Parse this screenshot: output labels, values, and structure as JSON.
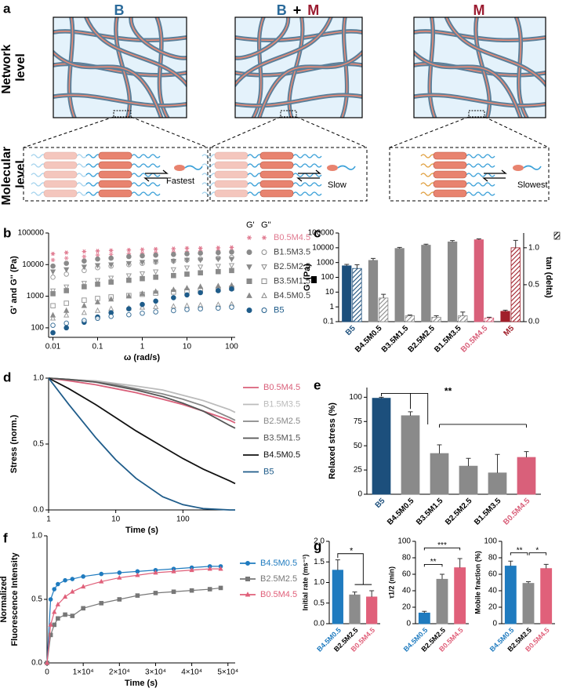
{
  "diagram": {
    "panel": "a",
    "column_titles": [
      [
        "B"
      ],
      [
        "B",
        "+",
        "M"
      ],
      [
        "M"
      ]
    ],
    "row_labels": [
      [
        "Network",
        "level"
      ],
      [
        "Molecular",
        "level"
      ]
    ],
    "speed_labels": [
      "Fastest",
      "Slow",
      "Slowest"
    ]
  },
  "chart_data": [
    {
      "panel": "b",
      "type": "scatter",
      "xlabel": "ω (rad/s)",
      "ylabel": "G' and G'' (Pa)",
      "xlog": true,
      "ylog": true,
      "xlim": [
        0.008,
        120
      ],
      "xticks": [
        0.01,
        0.1,
        1,
        10,
        100
      ],
      "ylim": [
        50,
        100000
      ],
      "yticks": [
        100,
        1000,
        10000,
        100000
      ],
      "legend_headers": [
        "G'",
        "G''"
      ],
      "x": [
        0.01,
        0.02,
        0.05,
        0.1,
        0.2,
        0.5,
        1,
        2,
        5,
        10,
        20,
        50,
        100
      ],
      "series": [
        {
          "name": "B0.5M4.5",
          "color": "#e07a90",
          "marker": "star",
          "storage": [
            22000,
            24000,
            26000,
            27000,
            28000,
            29000,
            30000,
            31000,
            32000,
            33000,
            33000,
            34000,
            35000
          ],
          "loss": [
            14000,
            16000,
            18000,
            20000,
            21000,
            22000,
            23000,
            24000,
            25000,
            26000,
            27000,
            28000,
            28000
          ]
        },
        {
          "name": "B1.5M3.5",
          "color": "#8a8a8a",
          "marker": "circle",
          "storage": [
            9000,
            11000,
            13000,
            15000,
            16000,
            18000,
            19000,
            20000,
            21000,
            22000,
            23000,
            24000,
            25000
          ],
          "loss": [
            4000,
            5000,
            6500,
            8000,
            9000,
            10000,
            11000,
            12000,
            13000,
            14000,
            15000,
            16000,
            17000
          ]
        },
        {
          "name": "B2.5M2.5",
          "color": "#8a8a8a",
          "marker": "triangle-down",
          "storage": [
            6000,
            7000,
            8500,
            9500,
            10000,
            11000,
            12000,
            12500,
            13000,
            14000,
            14000,
            15000,
            15000
          ],
          "loss": [
            1500,
            2000,
            2600,
            3200,
            3800,
            4500,
            5200,
            6000,
            7000,
            8000,
            8500,
            9000,
            9500
          ]
        },
        {
          "name": "B3.5M1.5",
          "color": "#8a8a8a",
          "marker": "square",
          "storage": [
            1200,
            1500,
            2000,
            2400,
            2800,
            3200,
            3600,
            4000,
            4500,
            5000,
            5500,
            6000,
            6500
          ],
          "loss": [
            500,
            600,
            750,
            850,
            950,
            1050,
            1150,
            1250,
            1350,
            1450,
            1550,
            1650,
            1800
          ]
        },
        {
          "name": "B4.5M0.5",
          "color": "#8a8a8a",
          "marker": "triangle-up",
          "storage": [
            250,
            350,
            500,
            650,
            800,
            1000,
            1200,
            1400,
            1600,
            1800,
            2000,
            2100,
            2200
          ],
          "loss": [
            200,
            250,
            300,
            350,
            400,
            420,
            440,
            460,
            480,
            500,
            520,
            540,
            560
          ]
        },
        {
          "name": "B5",
          "color": "#1f5c8a",
          "marker": "circle",
          "storage": [
            70,
            100,
            150,
            220,
            300,
            400,
            550,
            700,
            900,
            1100,
            1300,
            1500,
            1700
          ],
          "loss": [
            120,
            140,
            170,
            200,
            230,
            260,
            290,
            320,
            350,
            380,
            400,
            420,
            450
          ]
        }
      ]
    },
    {
      "panel": "c",
      "type": "bar",
      "ylabel": "G' (Pa)",
      "y2label": "tan (delta)",
      "ylog": true,
      "ylim": [
        0.1,
        100000
      ],
      "yticks": [
        0.1,
        1,
        10,
        100,
        1000,
        10000,
        100000
      ],
      "y2lim": [
        0,
        1.2
      ],
      "y2ticks": [
        {
          "value": 0,
          "label": "0.0"
        },
        0.5,
        {
          "value": 1,
          "label": "1.0"
        }
      ],
      "categories": [
        "B5",
        "B4.5M0.5",
        "B3.5M1.5",
        "B2.5M2.5",
        "B1.5M3.5",
        "B0.5M4.5",
        "M5"
      ],
      "category_colors": [
        "#1c4f7c",
        "#8a8a8a",
        "#8a8a8a",
        "#8a8a8a",
        "#8a8a8a",
        "#d9607a",
        "#a01f2a"
      ],
      "label_colors": [
        "#1c4f7c",
        "#000000",
        "#000000",
        "#000000",
        "#000000",
        "#d9607a",
        "#a01f2a"
      ],
      "series": [
        {
          "values": [
            600,
            1400,
            9000,
            15000,
            25000,
            35000,
            0.5
          ],
          "errors": [
            150,
            500,
            1500,
            2500,
            6000,
            5000,
            0.1
          ]
        },
        {
          "axis": "y2",
          "pattern": "hatch",
          "values": [
            0.72,
            0.32,
            0.08,
            0.06,
            0.08,
            0.05,
            1.0
          ],
          "errors": [
            0.05,
            0.05,
            0.01,
            0.02,
            0.05,
            0.01,
            0.1
          ]
        }
      ]
    },
    {
      "panel": "d",
      "type": "line",
      "xlabel": "Time (s)",
      "ylabel": "Stress (norm.)",
      "xlog": true,
      "xlim": [
        1,
        600
      ],
      "xticks": [
        1,
        10,
        100
      ],
      "ylim": [
        0,
        1
      ],
      "yticks": [
        {
          "value": 0,
          "label": "0.0"
        },
        0.5,
        {
          "value": 1,
          "label": "1.0"
        }
      ],
      "x": [
        1,
        2,
        5,
        10,
        20,
        50,
        100,
        200,
        500,
        600
      ],
      "series": [
        {
          "name": "B0.5M4.5",
          "color": "#d9607a",
          "values": [
            1,
            0.98,
            0.95,
            0.92,
            0.89,
            0.84,
            0.8,
            0.75,
            0.68,
            0.66
          ]
        },
        {
          "name": "B1.5M3.5",
          "color": "#bbbbbb",
          "values": [
            1,
            0.99,
            0.98,
            0.96,
            0.94,
            0.91,
            0.87,
            0.83,
            0.76,
            0.74
          ]
        },
        {
          "name": "B2.5M2.5",
          "color": "#888888",
          "values": [
            1,
            0.99,
            0.97,
            0.95,
            0.92,
            0.88,
            0.84,
            0.79,
            0.7,
            0.68
          ]
        },
        {
          "name": "B3.5M1.5",
          "color": "#555555",
          "values": [
            1,
            0.99,
            0.97,
            0.94,
            0.91,
            0.86,
            0.81,
            0.75,
            0.64,
            0.62
          ]
        },
        {
          "name": "B4.5M0.5",
          "color": "#111111",
          "values": [
            1,
            0.92,
            0.8,
            0.7,
            0.6,
            0.48,
            0.39,
            0.31,
            0.22,
            0.2
          ]
        },
        {
          "name": "B5",
          "color": "#1f5c8a",
          "values": [
            1,
            0.8,
            0.55,
            0.38,
            0.24,
            0.1,
            0.04,
            0.01,
            0,
            0
          ]
        }
      ]
    },
    {
      "panel": "e",
      "type": "bar",
      "ylabel": "Relaxed stress (%)",
      "ylim": [
        0,
        110
      ],
      "yticks": [
        0,
        25,
        50,
        75,
        100
      ],
      "categories": [
        "B5",
        "B4.5M0.5",
        "B3.5M1.5",
        "B2.5M2.5",
        "B1.5M3.5",
        "B0.5M4.5"
      ],
      "category_colors": [
        "#1c4f7c",
        "#8a8a8a",
        "#8a8a8a",
        "#8a8a8a",
        "#8a8a8a",
        "#d9607a"
      ],
      "label_colors": [
        "#1c4f7c",
        "#000000",
        "#000000",
        "#000000",
        "#000000",
        "#d9607a"
      ],
      "series": [
        {
          "values": [
            99,
            81,
            42,
            29,
            22,
            38
          ],
          "errors": [
            1,
            4,
            9,
            8,
            19,
            6
          ]
        }
      ],
      "annotations": [
        "**"
      ]
    },
    {
      "panel": "f",
      "type": "line",
      "xlabel": "Time (s)",
      "ylabel": [
        "Normalized",
        "Fluorescence Intensity"
      ],
      "xlim": [
        0,
        52000
      ],
      "xticks": [
        0,
        {
          "value": 10000,
          "label": "1×10⁴"
        },
        {
          "value": 20000,
          "label": "2×10⁴"
        },
        {
          "value": 30000,
          "label": "3×10⁴"
        },
        {
          "value": 40000,
          "label": "4×10⁴"
        },
        {
          "value": 50000,
          "label": "5×10⁴"
        }
      ],
      "ylim": [
        0,
        1
      ],
      "yticks": [
        {
          "value": 0,
          "label": "0.0"
        },
        0.5,
        {
          "value": 1,
          "label": "1.0"
        }
      ],
      "x": [
        0,
        1000,
        2000,
        3000,
        5000,
        7000,
        10000,
        15000,
        20000,
        25000,
        30000,
        35000,
        40000,
        45000,
        48000
      ],
      "series": [
        {
          "name": "B4.5M0.5",
          "color": "#1f7bbf",
          "marker": "circle",
          "values": [
            0,
            0.5,
            0.58,
            0.62,
            0.65,
            0.66,
            0.68,
            0.7,
            0.71,
            0.72,
            0.73,
            0.74,
            0.75,
            0.76,
            0.76
          ]
        },
        {
          "name": "B2.5M2.5",
          "color": "#777777",
          "marker": "square",
          "values": [
            0,
            0.22,
            0.3,
            0.35,
            0.38,
            0.37,
            0.43,
            0.47,
            0.5,
            0.53,
            0.55,
            0.56,
            0.57,
            0.58,
            0.59
          ]
        },
        {
          "name": "B0.5M4.5",
          "color": "#e0607a",
          "marker": "triangle-up",
          "values": [
            0,
            0.3,
            0.4,
            0.46,
            0.52,
            0.56,
            0.6,
            0.64,
            0.67,
            0.69,
            0.71,
            0.72,
            0.73,
            0.74,
            0.74
          ]
        }
      ]
    },
    {
      "panel": "g",
      "type": "bar",
      "ylabel": "Initial rate (ms⁻¹)",
      "ylim": [
        0,
        2
      ],
      "yticks": [
        {
          "value": 0,
          "label": "0.0"
        },
        0.5,
        {
          "value": 1,
          "label": "1.0"
        },
        1.5,
        {
          "value": 2,
          "label": "2.0"
        }
      ],
      "categories": [
        "B4.5M0.5",
        "B2.5M2.5",
        "B0.5M4.5"
      ],
      "category_colors": [
        "#1f7bbf",
        "#8c8c8c",
        "#e0607a"
      ],
      "label_colors": [
        "#1f7bbf",
        "#000000",
        "#e0607a"
      ],
      "series": [
        {
          "values": [
            1.3,
            0.7,
            0.65
          ],
          "errors": [
            0.25,
            0.07,
            0.15
          ]
        }
      ],
      "annotations": [
        "*"
      ]
    },
    {
      "type": "bar",
      "ylabel": "τ1/2 (min)",
      "ylim": [
        0,
        100
      ],
      "yticks": [
        0,
        20,
        40,
        60,
        80,
        100
      ],
      "categories": [
        "B4.5M0.5",
        "B2.5M2.5",
        "B0.5M4.5"
      ],
      "category_colors": [
        "#1f7bbf",
        "#8c8c8c",
        "#e0607a"
      ],
      "label_colors": [
        "#1f7bbf",
        "#000000",
        "#e0607a"
      ],
      "series": [
        {
          "values": [
            13,
            54,
            68
          ],
          "errors": [
            2,
            6,
            11
          ]
        }
      ],
      "annotations": [
        "**",
        "***"
      ]
    },
    {
      "type": "bar",
      "ylabel": "Mobile fraction (%)",
      "ylim": [
        0,
        100
      ],
      "yticks": [
        0,
        20,
        40,
        60,
        80,
        100
      ],
      "categories": [
        "B4.5M0.5",
        "B2.5M2.5",
        "B0.5M4.5"
      ],
      "category_colors": [
        "#1f7bbf",
        "#8c8c8c",
        "#e0607a"
      ],
      "label_colors": [
        "#1f7bbf",
        "#000000",
        "#e0607a"
      ],
      "series": [
        {
          "values": [
            70,
            49,
            67
          ],
          "errors": [
            6,
            2,
            5
          ]
        }
      ],
      "annotations": [
        "**",
        "*"
      ]
    }
  ]
}
